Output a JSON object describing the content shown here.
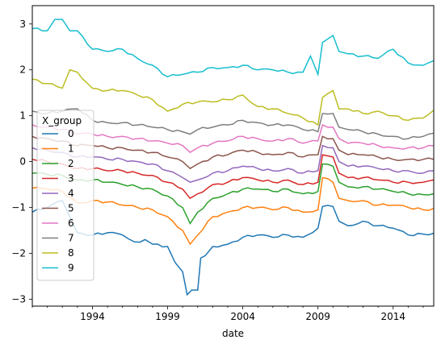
{
  "chart_data": {
    "type": "line",
    "title": "",
    "xlabel": "date",
    "ylabel": "",
    "xlim": [
      1990.0,
      2016.7
    ],
    "ylim": [
      -3.15,
      3.4
    ],
    "xticks": [
      1994,
      1999,
      2004,
      2009,
      2014
    ],
    "yticks": [
      -3,
      -2,
      -1,
      0,
      1,
      2,
      3
    ],
    "grid": false,
    "legend": {
      "title": "X_group",
      "placement": "left"
    },
    "series": [
      {
        "name": "0",
        "color": "#1f77b4",
        "x": [
          1990.0,
          1991.0,
          1992.0,
          1992.5,
          1993.0,
          1994.0,
          1995.0,
          1996.0,
          1996.8,
          1997.5,
          1998.0,
          1999.0,
          1999.5,
          2000.0,
          2000.3,
          2000.6,
          2001.0,
          2001.2,
          2001.5,
          2002.0,
          2003.0,
          2004.0,
          2005.0,
          2006.0,
          2007.0,
          2008.0,
          2009.0,
          2009.3,
          2010.0,
          2010.4,
          2011.0,
          2012.0,
          2013.0,
          2014.0,
          2015.0,
          2016.0,
          2016.7
        ],
        "y": [
          -1.1,
          -1.0,
          -0.85,
          -1.2,
          -1.55,
          -1.6,
          -1.55,
          -1.6,
          -1.75,
          -1.7,
          -1.8,
          -1.85,
          -2.2,
          -2.4,
          -2.9,
          -2.8,
          -2.8,
          -2.1,
          -2.05,
          -1.85,
          -1.8,
          -1.65,
          -1.6,
          -1.65,
          -1.6,
          -1.65,
          -1.45,
          -0.98,
          -0.98,
          -1.3,
          -1.4,
          -1.3,
          -1.4,
          -1.45,
          -1.6,
          -1.58,
          -1.56
        ]
      },
      {
        "name": "1",
        "color": "#ff7f0e",
        "x": [
          1990.0,
          1991.0,
          1992.0,
          1993.0,
          1994.0,
          1995.0,
          1996.0,
          1997.0,
          1998.0,
          1999.0,
          2000.0,
          2000.5,
          2001.0,
          2002.0,
          2003.0,
          2004.0,
          2005.0,
          2006.0,
          2007.0,
          2008.0,
          2009.0,
          2009.3,
          2010.0,
          2010.4,
          2011.0,
          2012.0,
          2013.0,
          2014.0,
          2015.0,
          2016.0,
          2016.7
        ],
        "y": [
          -0.58,
          -0.6,
          -0.65,
          -0.9,
          -0.85,
          -0.88,
          -0.95,
          -1.0,
          -1.05,
          -1.2,
          -1.5,
          -1.8,
          -1.6,
          -1.2,
          -1.1,
          -1.0,
          -1.0,
          -1.05,
          -1.0,
          -1.1,
          -1.05,
          -0.35,
          -0.45,
          -0.8,
          -0.85,
          -0.85,
          -0.95,
          -0.95,
          -1.0,
          -1.05,
          -1.02
        ]
      },
      {
        "name": "2",
        "color": "#2ca02c",
        "x": [
          1990.0,
          1991.0,
          1992.0,
          1993.0,
          1994.0,
          1995.0,
          1996.0,
          1997.0,
          1998.0,
          1999.0,
          2000.0,
          2000.5,
          2001.0,
          2002.0,
          2003.0,
          2004.0,
          2005.0,
          2006.0,
          2007.0,
          2008.0,
          2009.0,
          2009.3,
          2010.0,
          2010.4,
          2011.0,
          2012.0,
          2013.0,
          2014.0,
          2015.0,
          2016.0,
          2016.7
        ],
        "y": [
          -0.25,
          -0.28,
          -0.3,
          -0.4,
          -0.4,
          -0.45,
          -0.5,
          -0.55,
          -0.6,
          -0.75,
          -1.0,
          -1.35,
          -1.1,
          -0.8,
          -0.7,
          -0.6,
          -0.6,
          -0.65,
          -0.6,
          -0.7,
          -0.65,
          -0.05,
          -0.1,
          -0.45,
          -0.55,
          -0.55,
          -0.6,
          -0.65,
          -0.7,
          -0.72,
          -0.7
        ]
      },
      {
        "name": "3",
        "color": "#d62728",
        "x": [
          1990.0,
          1991.0,
          1992.0,
          1993.0,
          1994.0,
          1995.0,
          1996.0,
          1997.0,
          1998.0,
          1999.0,
          2000.0,
          2000.5,
          2001.0,
          2002.0,
          2003.0,
          2004.0,
          2005.0,
          2006.0,
          2007.0,
          2008.0,
          2009.0,
          2009.3,
          2010.0,
          2010.4,
          2011.0,
          2012.0,
          2013.0,
          2014.0,
          2015.0,
          2016.0,
          2016.7
        ],
        "y": [
          0.05,
          0.0,
          -0.05,
          -0.15,
          -0.15,
          -0.2,
          -0.2,
          -0.25,
          -0.3,
          -0.45,
          -0.6,
          -0.8,
          -0.7,
          -0.5,
          -0.45,
          -0.35,
          -0.4,
          -0.45,
          -0.4,
          -0.5,
          -0.45,
          0.15,
          0.1,
          -0.25,
          -0.35,
          -0.35,
          -0.4,
          -0.45,
          -0.45,
          -0.45,
          -0.4
        ]
      },
      {
        "name": "4",
        "color": "#9467bd",
        "x": [
          1990.0,
          1991.0,
          1992.0,
          1993.0,
          1994.0,
          1995.0,
          1996.0,
          1997.0,
          1998.0,
          1999.0,
          2000.0,
          2000.5,
          2001.0,
          2002.0,
          2003.0,
          2004.0,
          2005.0,
          2006.0,
          2007.0,
          2008.0,
          2009.0,
          2009.3,
          2010.0,
          2010.4,
          2011.0,
          2012.0,
          2013.0,
          2014.0,
          2015.0,
          2016.0,
          2016.7
        ],
        "y": [
          0.3,
          0.25,
          0.2,
          0.1,
          0.1,
          0.05,
          0.05,
          0.0,
          -0.05,
          -0.2,
          -0.35,
          -0.45,
          -0.4,
          -0.25,
          -0.2,
          -0.1,
          -0.15,
          -0.2,
          -0.15,
          -0.25,
          -0.2,
          0.35,
          0.3,
          0.0,
          -0.1,
          -0.1,
          -0.15,
          -0.2,
          -0.2,
          -0.25,
          -0.2
        ]
      },
      {
        "name": "5",
        "color": "#8c564b",
        "x": [
          1990.0,
          1991.0,
          1992.0,
          1993.0,
          1994.0,
          1995.0,
          1996.0,
          1997.0,
          1998.0,
          1999.0,
          2000.0,
          2000.5,
          2001.0,
          2002.0,
          2003.0,
          2004.0,
          2005.0,
          2006.0,
          2007.0,
          2008.0,
          2009.0,
          2009.3,
          2010.0,
          2010.4,
          2011.0,
          2012.0,
          2013.0,
          2014.0,
          2015.0,
          2016.0,
          2016.7
        ],
        "y": [
          0.55,
          0.5,
          0.45,
          0.35,
          0.35,
          0.3,
          0.3,
          0.25,
          0.2,
          0.1,
          0.0,
          -0.15,
          -0.05,
          0.1,
          0.15,
          0.25,
          0.2,
          0.15,
          0.2,
          0.1,
          0.15,
          0.55,
          0.5,
          0.25,
          0.15,
          0.15,
          0.1,
          0.05,
          0.05,
          0.05,
          0.05
        ]
      },
      {
        "name": "6",
        "color": "#e377c2",
        "x": [
          1990.0,
          1991.0,
          1992.0,
          1993.0,
          1994.0,
          1995.0,
          1996.0,
          1997.0,
          1998.0,
          1999.0,
          2000.0,
          2000.5,
          2001.0,
          2002.0,
          2003.0,
          2004.0,
          2005.0,
          2006.0,
          2007.0,
          2008.0,
          2009.0,
          2009.3,
          2010.0,
          2010.4,
          2011.0,
          2012.0,
          2013.0,
          2014.0,
          2015.0,
          2016.0,
          2016.7
        ],
        "y": [
          0.8,
          0.75,
          0.7,
          0.6,
          0.6,
          0.55,
          0.55,
          0.5,
          0.45,
          0.4,
          0.35,
          0.2,
          0.3,
          0.4,
          0.45,
          0.55,
          0.5,
          0.45,
          0.5,
          0.4,
          0.45,
          0.8,
          0.75,
          0.5,
          0.4,
          0.4,
          0.35,
          0.3,
          0.3,
          0.3,
          0.35
        ]
      },
      {
        "name": "7",
        "color": "#7f7f7f",
        "x": [
          1990.0,
          1991.0,
          1992.0,
          1993.0,
          1994.0,
          1995.0,
          1996.0,
          1997.0,
          1998.0,
          1999.0,
          2000.0,
          2000.5,
          2001.0,
          2002.0,
          2003.0,
          2004.0,
          2005.0,
          2006.0,
          2007.0,
          2008.0,
          2009.0,
          2009.3,
          2010.0,
          2010.4,
          2011.0,
          2012.0,
          2013.0,
          2014.0,
          2015.0,
          2016.0,
          2016.7
        ],
        "y": [
          1.1,
          1.05,
          1.1,
          1.15,
          0.9,
          0.85,
          0.85,
          0.8,
          0.75,
          0.7,
          0.65,
          0.6,
          0.7,
          0.75,
          0.8,
          0.9,
          0.85,
          0.8,
          0.8,
          0.7,
          0.65,
          1.05,
          1.05,
          0.75,
          0.7,
          0.65,
          0.6,
          0.55,
          0.5,
          0.55,
          0.62
        ]
      },
      {
        "name": "8",
        "color": "#bcbd22",
        "x": [
          1990.0,
          1991.0,
          1992.0,
          1992.5,
          1993.0,
          1994.0,
          1995.0,
          1996.0,
          1997.0,
          1998.0,
          1999.0,
          2000.0,
          2001.0,
          2002.0,
          2003.0,
          2004.0,
          2005.0,
          2006.0,
          2007.0,
          2008.0,
          2009.0,
          2009.3,
          2010.0,
          2010.4,
          2011.0,
          2012.0,
          2013.0,
          2014.0,
          2015.0,
          2016.0,
          2016.7
        ],
        "y": [
          1.8,
          1.7,
          1.6,
          2.0,
          1.95,
          1.6,
          1.55,
          1.55,
          1.45,
          1.35,
          1.1,
          1.25,
          1.3,
          1.3,
          1.35,
          1.45,
          1.2,
          1.15,
          1.05,
          0.95,
          0.8,
          1.4,
          1.55,
          1.15,
          1.15,
          1.05,
          1.1,
          1.0,
          0.9,
          0.95,
          1.12
        ]
      },
      {
        "name": "9",
        "color": "#17becf",
        "x": [
          1990.0,
          1991.0,
          1991.5,
          1992.0,
          1992.5,
          1993.0,
          1994.0,
          1995.0,
          1996.0,
          1997.0,
          1998.0,
          1999.0,
          2000.0,
          2001.0,
          2002.0,
          2003.0,
          2004.0,
          2005.0,
          2006.0,
          2007.0,
          2008.0,
          2008.5,
          2009.0,
          2009.3,
          2010.0,
          2010.4,
          2011.0,
          2012.0,
          2013.0,
          2014.0,
          2015.0,
          2016.0,
          2016.7
        ],
        "y": [
          2.9,
          2.85,
          3.1,
          3.1,
          2.85,
          2.85,
          2.45,
          2.4,
          2.45,
          2.25,
          2.1,
          1.85,
          1.9,
          1.95,
          2.05,
          2.05,
          2.1,
          2.0,
          2.0,
          1.95,
          1.95,
          2.3,
          1.9,
          2.6,
          2.75,
          2.4,
          2.35,
          2.3,
          2.25,
          2.45,
          2.15,
          2.1,
          2.2
        ]
      }
    ]
  }
}
